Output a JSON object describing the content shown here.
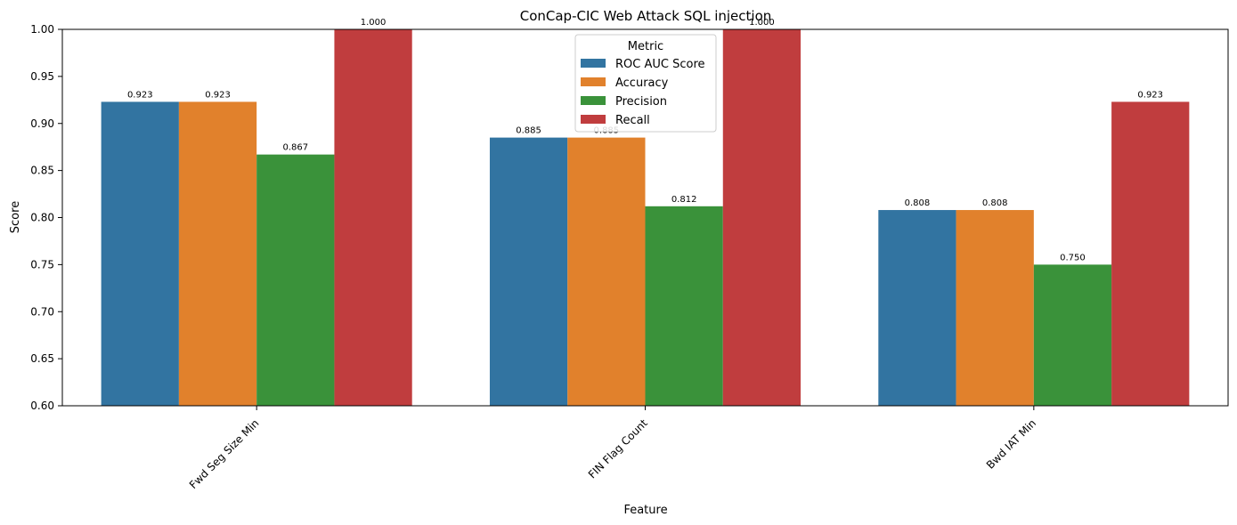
{
  "chart_data": {
    "type": "bar",
    "title": "ConCap-CIC Web Attack SQL injection",
    "xlabel": "Feature",
    "ylabel": "Score",
    "ylim": [
      0.6,
      1.0
    ],
    "yticks": [
      "0.60",
      "0.65",
      "0.70",
      "0.75",
      "0.80",
      "0.85",
      "0.90",
      "0.95",
      "1.00"
    ],
    "categories": [
      "Fwd Seg Size Min",
      "FIN Flag Count",
      "Bwd IAT Min"
    ],
    "legend": {
      "title": "Metric",
      "position": "top-center"
    },
    "grid": false,
    "series": [
      {
        "name": "ROC AUC Score",
        "color": "#3274a1",
        "values": [
          0.923,
          0.885,
          0.808
        ],
        "labels": [
          "0.923",
          "0.885",
          "0.808"
        ]
      },
      {
        "name": "Accuracy",
        "color": "#e1812c",
        "values": [
          0.923,
          0.885,
          0.808
        ],
        "labels": [
          "0.923",
          "0.885",
          "0.808"
        ]
      },
      {
        "name": "Precision",
        "color": "#3a923a",
        "values": [
          0.867,
          0.812,
          0.75
        ],
        "labels": [
          "0.867",
          "0.812",
          "0.750"
        ]
      },
      {
        "name": "Recall",
        "color": "#c03d3e",
        "values": [
          1.0,
          1.0,
          0.923
        ],
        "labels": [
          "1.000",
          "1.000",
          "0.923"
        ]
      }
    ]
  }
}
